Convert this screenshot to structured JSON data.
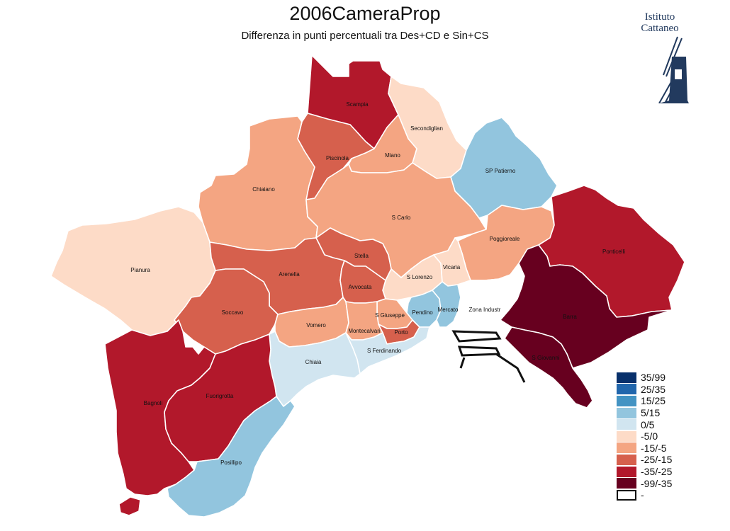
{
  "title": "2006CameraProp",
  "subtitle": "Differenza in punti percentuali tra Des+CD e Sin+CS",
  "logo": {
    "line1": "Istituto",
    "line2": "Cattaneo",
    "icon": "windmill-icon"
  },
  "legend": [
    {
      "label": "35/99",
      "color": "#08306b"
    },
    {
      "label": "25/35",
      "color": "#2166ac"
    },
    {
      "label": "15/25",
      "color": "#4393c3"
    },
    {
      "label": "5/15",
      "color": "#92c5de"
    },
    {
      "label": "0/5",
      "color": "#d1e5f0"
    },
    {
      "label": "-5/0",
      "color": "#fddbc7"
    },
    {
      "label": "-15/-5",
      "color": "#f4a582"
    },
    {
      "label": "-25/-15",
      "color": "#d6604d"
    },
    {
      "label": "-35/-25",
      "color": "#b2182b"
    },
    {
      "label": "-99/-35",
      "color": "#67001f"
    },
    {
      "label": "-",
      "color": "#ffffff"
    }
  ],
  "regions": [
    {
      "name": "Scampia",
      "class": "-35/-25",
      "color": "#b2182b"
    },
    {
      "name": "Secondiglian",
      "class": "-5/0",
      "color": "#fddbc7"
    },
    {
      "name": "Piscinola",
      "class": "-25/-15",
      "color": "#d6604d"
    },
    {
      "name": "Miano",
      "class": "-15/-5",
      "color": "#f4a582"
    },
    {
      "name": "SP Patierno",
      "class": "5/15",
      "color": "#92c5de"
    },
    {
      "name": "Chiaiano",
      "class": "-15/-5",
      "color": "#f4a582"
    },
    {
      "name": "S Carlo",
      "class": "-15/-5",
      "color": "#f4a582"
    },
    {
      "name": "Poggioreale",
      "class": "-15/-5",
      "color": "#f4a582"
    },
    {
      "name": "Ponticelli",
      "class": "-35/-25",
      "color": "#b2182b"
    },
    {
      "name": "Pianura",
      "class": "-5/0",
      "color": "#fddbc7"
    },
    {
      "name": "Stella",
      "class": "-25/-15",
      "color": "#d6604d"
    },
    {
      "name": "S Lorenzo",
      "class": "-5/0",
      "color": "#fddbc7"
    },
    {
      "name": "Vicaria",
      "class": "-5/0",
      "color": "#fddbc7"
    },
    {
      "name": "Arenella",
      "class": "-25/-15",
      "color": "#d6604d"
    },
    {
      "name": "Avvocata",
      "class": "-25/-15",
      "color": "#d6604d"
    },
    {
      "name": "Soccavo",
      "class": "-25/-15",
      "color": "#d6604d"
    },
    {
      "name": "Pendino",
      "class": "5/15",
      "color": "#92c5de"
    },
    {
      "name": "Mercato",
      "class": "5/15",
      "color": "#92c5de"
    },
    {
      "name": "Zona Industr",
      "class": "-",
      "color": "#ffffff"
    },
    {
      "name": "Barra",
      "class": "-99/-35",
      "color": "#67001f"
    },
    {
      "name": "S Giuseppe",
      "class": "-15/-5",
      "color": "#f4a582"
    },
    {
      "name": "Vomero",
      "class": "-15/-5",
      "color": "#f4a582"
    },
    {
      "name": "Montecalvari",
      "class": "-15/-5",
      "color": "#f4a582"
    },
    {
      "name": "Porto",
      "class": "-25/-15",
      "color": "#d6604d"
    },
    {
      "name": "S Ferdinando",
      "class": "0/5",
      "color": "#d1e5f0"
    },
    {
      "name": "Chiaia",
      "class": "0/5",
      "color": "#d1e5f0"
    },
    {
      "name": "S Giovanni",
      "class": "-99/-35",
      "color": "#67001f"
    },
    {
      "name": "Bagnoli",
      "class": "-35/-25",
      "color": "#b2182b"
    },
    {
      "name": "Fuorigrotta",
      "class": "-35/-25",
      "color": "#b2182b"
    },
    {
      "name": "Posillipo",
      "class": "5/15",
      "color": "#92c5de"
    }
  ]
}
